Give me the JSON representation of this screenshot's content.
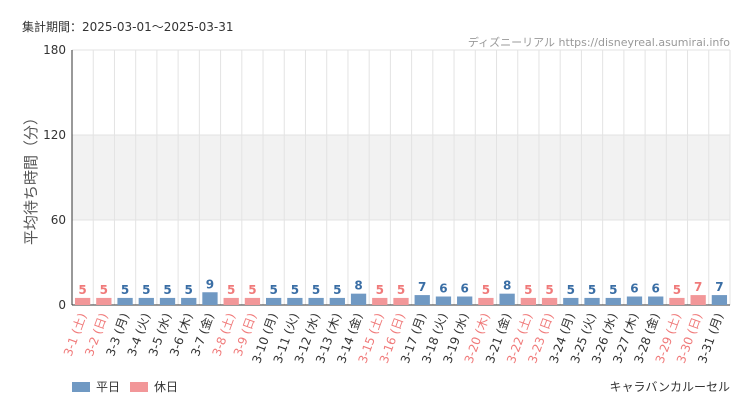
{
  "header": {
    "period_label": "集計期間：2025-03-01～2025-03-31",
    "source": "ディズニーリアル https://disneyreal.asumirai.info"
  },
  "footer": {
    "attraction": "キャラバンカルーセル"
  },
  "colors": {
    "weekday": "#7099c3",
    "holiday": "#f29799",
    "weekday_text": "#333333",
    "holiday_text": "#f07a7a",
    "band": "#f2f2f2",
    "grid": "#e3e3e3"
  },
  "chart_data": {
    "type": "bar",
    "ylabel": "平均待ち時間（分）",
    "xlabel": "",
    "ylim": [
      0,
      180
    ],
    "yticks": [
      0,
      60,
      120,
      180
    ],
    "grid": true,
    "shaded_bands": [
      [
        60,
        120
      ]
    ],
    "legend_position": "bottom-left",
    "legend": [
      {
        "name": "平日",
        "key": "weekday"
      },
      {
        "name": "休日",
        "key": "holiday"
      }
    ],
    "categories": [
      "3-1 (土)",
      "3-2 (日)",
      "3-3 (月)",
      "3-4 (火)",
      "3-5 (水)",
      "3-6 (木)",
      "3-7 (金)",
      "3-8 (土)",
      "3-9 (日)",
      "3-10 (月)",
      "3-11 (火)",
      "3-12 (水)",
      "3-13 (木)",
      "3-14 (金)",
      "3-15 (土)",
      "3-16 (日)",
      "3-17 (月)",
      "3-18 (火)",
      "3-19 (水)",
      "3-20 (木)",
      "3-21 (金)",
      "3-22 (土)",
      "3-23 (日)",
      "3-24 (月)",
      "3-25 (火)",
      "3-26 (水)",
      "3-27 (木)",
      "3-28 (金)",
      "3-29 (土)",
      "3-30 (日)",
      "3-31 (月)"
    ],
    "values": [
      5,
      5,
      5,
      5,
      5,
      5,
      9,
      5,
      5,
      5,
      5,
      5,
      5,
      8,
      5,
      5,
      7,
      6,
      6,
      5,
      8,
      5,
      5,
      5,
      5,
      5,
      6,
      6,
      5,
      7,
      7
    ],
    "day_type": [
      "holiday",
      "holiday",
      "weekday",
      "weekday",
      "weekday",
      "weekday",
      "weekday",
      "holiday",
      "holiday",
      "weekday",
      "weekday",
      "weekday",
      "weekday",
      "weekday",
      "holiday",
      "holiday",
      "weekday",
      "weekday",
      "weekday",
      "holiday",
      "weekday",
      "holiday",
      "holiday",
      "weekday",
      "weekday",
      "weekday",
      "weekday",
      "weekday",
      "holiday",
      "holiday",
      "weekday"
    ]
  }
}
